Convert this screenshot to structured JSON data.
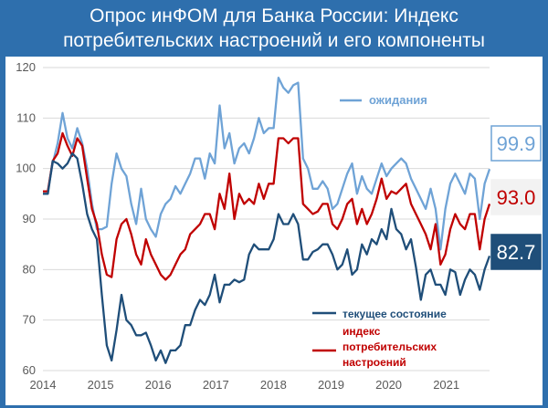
{
  "title": {
    "line1": "Опрос инФОМ для Банка России: Индекс",
    "line2": "потребительских настроений и его компоненты"
  },
  "chart_data": {
    "type": "line",
    "x_start": 2014.0,
    "x_end": 2021.75,
    "x_step_months": 1,
    "xticks": [
      "2014",
      "2015",
      "2016",
      "2017",
      "2018",
      "2019",
      "2020",
      "2021"
    ],
    "yticks": [
      "60",
      "70",
      "80",
      "90",
      "100",
      "110",
      "120"
    ],
    "ylim": [
      60,
      120
    ],
    "grid": true,
    "series": [
      {
        "name": "ожидания",
        "color": "#6fa3d6",
        "last_label": "99.9",
        "values": [
          95.5,
          95.5,
          101,
          105,
          111,
          106,
          104,
          108,
          105,
          100,
          93,
          88,
          88,
          88.5,
          97,
          103,
          100,
          98.5,
          93,
          89,
          96,
          90,
          88,
          86.5,
          91,
          93,
          94,
          96.5,
          95,
          97,
          99,
          102,
          102,
          98,
          103,
          101,
          112.5,
          104,
          107,
          101,
          104,
          105,
          103,
          106,
          110,
          107,
          108,
          108,
          118,
          116,
          115,
          116.5,
          117,
          102,
          100,
          96,
          96,
          97.5,
          96,
          92,
          93,
          96,
          99,
          101,
          95,
          98.5,
          96,
          95,
          98,
          101,
          98.5,
          100,
          101,
          102,
          101,
          98,
          96,
          94,
          92,
          96,
          92,
          84,
          92,
          97,
          99,
          97,
          95,
          99,
          98,
          90,
          97,
          99.9
        ]
      },
      {
        "name": "индекс потребительских настроений",
        "color": "#c00000",
        "last_label": "93.0",
        "values": [
          95.5,
          95.5,
          101.5,
          103,
          107,
          104.5,
          102.5,
          106,
          104.5,
          98,
          92,
          89,
          83,
          79,
          78.5,
          86,
          89,
          90,
          87,
          83,
          81,
          86,
          83,
          81,
          79,
          78,
          79,
          81,
          83,
          84,
          87,
          88,
          89,
          91,
          91,
          88,
          95,
          92,
          99,
          90,
          95,
          93,
          94,
          93,
          97,
          94,
          97,
          97,
          106,
          106,
          105,
          106,
          106,
          93,
          92,
          91,
          91.5,
          93,
          93,
          89,
          88,
          90,
          93,
          94,
          89,
          92,
          89,
          91,
          94,
          98,
          94,
          95.5,
          95,
          96,
          97,
          93,
          91,
          89,
          87,
          84,
          89,
          81,
          83,
          88,
          91,
          89,
          88,
          91,
          91,
          84,
          90,
          93.0
        ]
      },
      {
        "name": "текущее состояние",
        "color": "#1f4e79",
        "last_label": "82.7",
        "values": [
          95,
          95,
          101.5,
          101,
          100,
          101,
          103,
          102,
          97,
          91,
          88,
          86,
          75,
          65,
          62,
          68,
          75,
          70,
          69,
          67,
          67,
          67.5,
          65,
          62,
          64,
          61.5,
          64,
          64,
          65,
          69,
          69,
          72,
          74,
          73,
          75,
          79,
          73.5,
          77,
          77,
          78,
          77.5,
          78,
          83,
          85,
          84,
          84,
          84,
          86,
          91,
          89,
          89,
          91,
          89,
          82,
          82,
          83.5,
          84,
          85,
          85,
          83,
          80,
          81,
          84,
          79,
          80,
          85,
          83,
          86,
          85,
          88,
          86,
          92,
          88,
          87,
          84,
          86,
          80.5,
          74,
          79,
          80,
          77,
          77,
          75,
          80,
          79.5,
          75,
          78,
          80,
          79,
          76,
          80,
          82.7
        ]
      }
    ],
    "legend": [
      "текущее состояние",
      "индекс",
      "потребительских",
      "настроений"
    ]
  }
}
